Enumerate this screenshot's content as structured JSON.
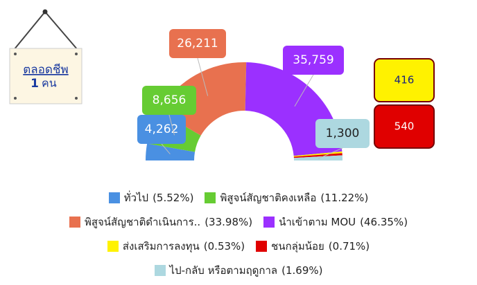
{
  "sign": {
    "title": "ตลอดชีพ",
    "count": 1,
    "unit": "คน"
  },
  "chart_data": {
    "type": "pie",
    "categories": [
      "ทั่วไป",
      "พิสูจน์สัญชาติคงเหลือ",
      "พิสูจน์สัญชาติดำเนินการ..",
      "นำเข้าตาม MOU",
      "ส่งเสริมการลงทุน",
      "ชนกลุ่มน้อย",
      "ไป-กลับ หรือตามฤดูกาล"
    ],
    "values": [
      4262,
      8656,
      26211,
      35759,
      416,
      540,
      1300
    ],
    "value_labels": [
      "4,262",
      "8,656",
      "26,211",
      "35,759",
      "416",
      "540",
      "1,300"
    ],
    "percent_labels": [
      "(5.52%)",
      "(11.22%)",
      "(33.98%)",
      "(46.35%)",
      "(0.53%)",
      "(0.71%)",
      "(1.69%)"
    ],
    "colors": [
      "#4a90e2",
      "#66cc33",
      "#e8714f",
      "#9b30ff",
      "#fff200",
      "#e00000",
      "#add8e0"
    ]
  }
}
